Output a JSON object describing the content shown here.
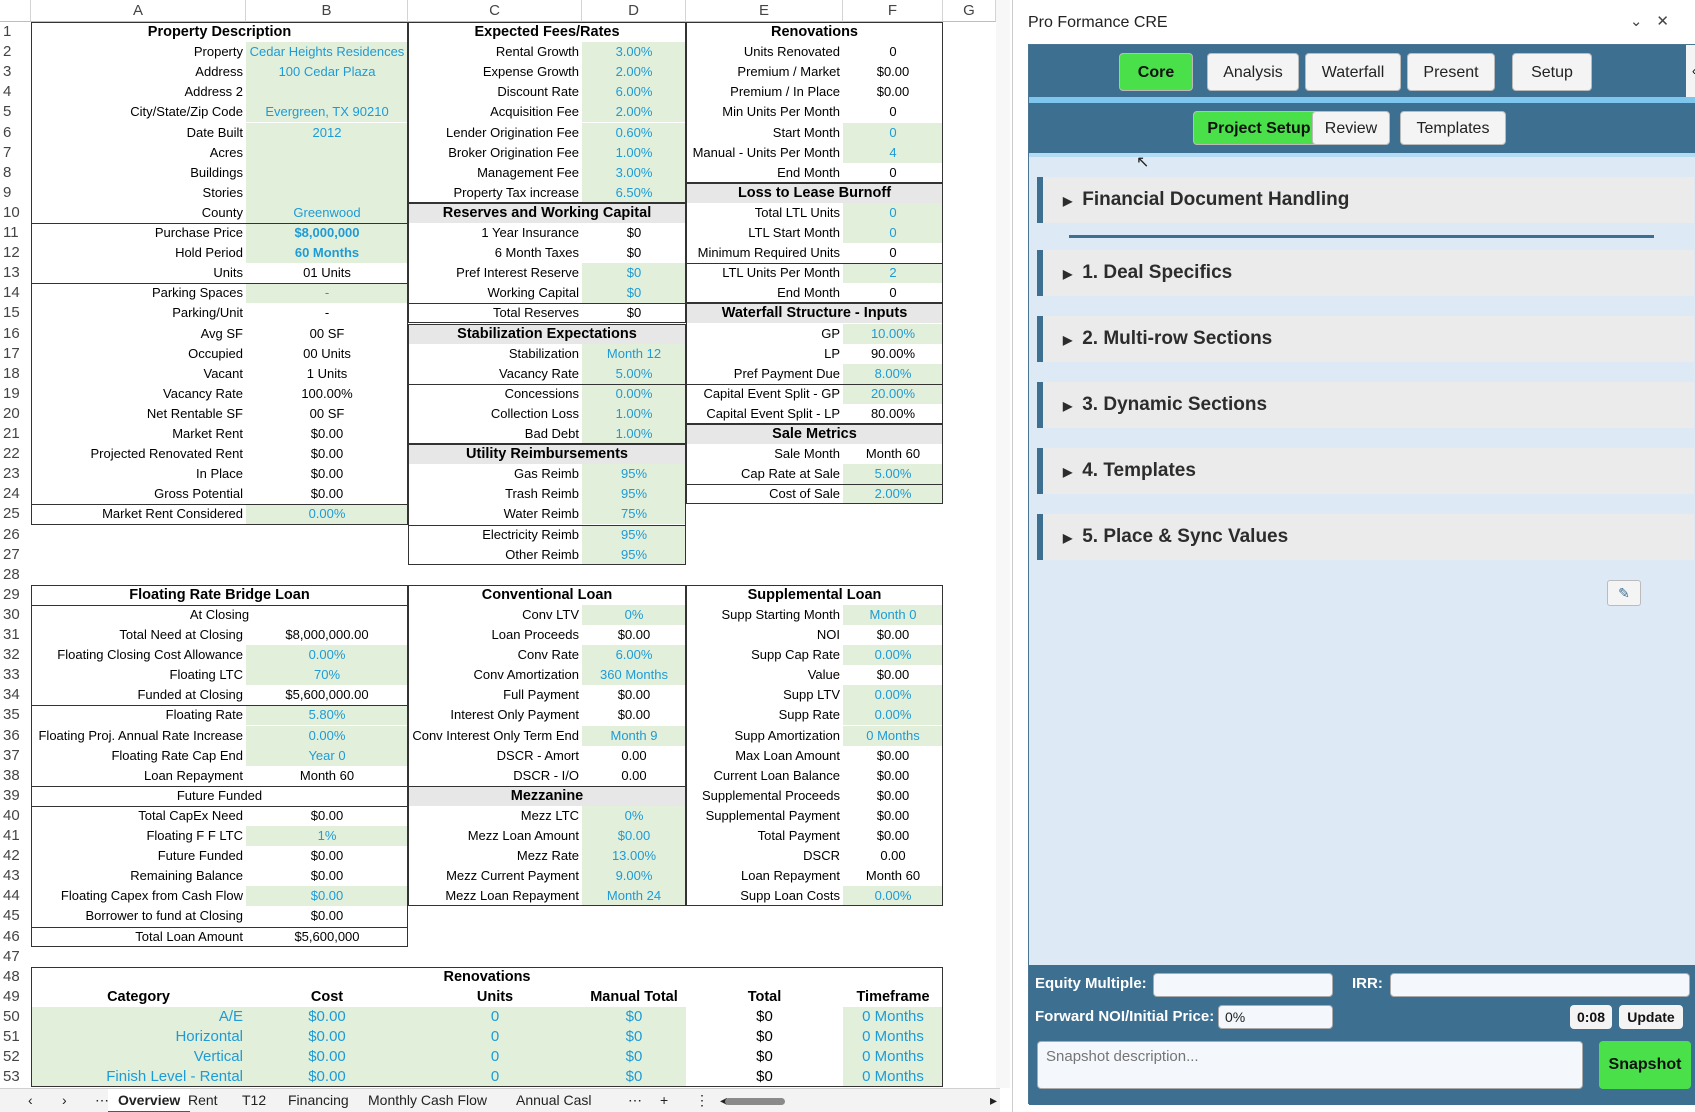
{
  "sheet": {
    "columns": [
      "A",
      "B",
      "C",
      "D",
      "E",
      "F",
      "G"
    ],
    "rows": [
      "1",
      "2",
      "3",
      "4",
      "5",
      "6",
      "7",
      "8",
      "9",
      "10",
      "11",
      "12",
      "13",
      "14",
      "15",
      "16",
      "17",
      "18",
      "19",
      "20",
      "21",
      "22",
      "23",
      "24",
      "25",
      "26",
      "27",
      "28",
      "29",
      "30",
      "31",
      "32",
      "33",
      "34",
      "35",
      "36",
      "37",
      "38",
      "39",
      "40",
      "41",
      "42",
      "43",
      "44",
      "45",
      "46",
      "47",
      "48",
      "49",
      "50",
      "51",
      "52",
      "53"
    ],
    "property": {
      "title": "Property Description",
      "rows": [
        [
          "Property",
          "Cedar Heights Residences",
          "i"
        ],
        [
          "Address",
          "100 Cedar Plaza",
          "i"
        ],
        [
          "Address 2",
          "",
          "i"
        ],
        [
          "City/State/Zip Code",
          "Evergreen, TX 90210",
          "i"
        ],
        [
          "Date Built",
          "2012",
          "i"
        ],
        [
          "Acres",
          "",
          "i"
        ],
        [
          "Buildings",
          "",
          "i"
        ],
        [
          "Stories",
          "",
          "i"
        ],
        [
          "County",
          "Greenwood",
          "i"
        ],
        [
          "Purchase Price",
          "$8,000,000",
          "ib"
        ],
        [
          "Hold Period",
          "60 Months",
          "ib"
        ],
        [
          "Units",
          "01 Units",
          "p"
        ],
        [
          "Parking Spaces",
          "-",
          "i"
        ],
        [
          "Parking/Unit",
          "-",
          "p"
        ],
        [
          "Avg SF",
          "00 SF",
          "p"
        ],
        [
          "Occupied",
          "00 Units",
          "p"
        ],
        [
          "Vacant",
          "1 Units",
          "p"
        ],
        [
          "Vacancy Rate",
          "100.00%",
          "p"
        ],
        [
          "Net Rentable SF",
          "00 SF",
          "p"
        ],
        [
          "Market Rent",
          "$0.00",
          "p"
        ],
        [
          "Projected Renovated Rent",
          "$0.00",
          "p"
        ],
        [
          "In Place",
          "$0.00",
          "p"
        ],
        [
          "Gross Potential",
          "$0.00",
          "p"
        ],
        [
          "Market Rent Considered",
          "0.00%",
          "i"
        ]
      ]
    },
    "fees": {
      "title": "Expected Fees/Rates",
      "rows": [
        [
          "Rental Growth",
          "3.00%",
          "i"
        ],
        [
          "Expense Growth",
          "2.00%",
          "i"
        ],
        [
          "Discount Rate",
          "6.00%",
          "i"
        ],
        [
          "Acquisition Fee",
          "2.00%",
          "i"
        ],
        [
          "Lender Origination Fee",
          "0.60%",
          "i"
        ],
        [
          "Broker Origination Fee",
          "1.00%",
          "i"
        ],
        [
          "Management Fee",
          "3.00%",
          "i"
        ],
        [
          "Property Tax increase",
          "6.50%",
          "i"
        ]
      ]
    },
    "reserves": {
      "title": "Reserves and Working Capital",
      "rows": [
        [
          "1 Year Insurance",
          "$0",
          "p"
        ],
        [
          "6 Month Taxes",
          "$0",
          "p"
        ],
        [
          "Pref Interest Reserve",
          "$0",
          "i"
        ],
        [
          "Working Capital",
          "$0",
          "i"
        ],
        [
          "Total Reserves",
          "$0",
          "p"
        ]
      ]
    },
    "stabilization": {
      "title": "Stabilization Expectations",
      "rows": [
        [
          "Stabilization",
          "Month 12",
          "i"
        ],
        [
          "Vacancy Rate",
          "5.00%",
          "i"
        ],
        [
          "Concessions",
          "0.00%",
          "i"
        ],
        [
          "Collection Loss",
          "1.00%",
          "i"
        ],
        [
          "Bad Debt",
          "1.00%",
          "i"
        ]
      ]
    },
    "utility": {
      "title": "Utility Reimbursements",
      "rows": [
        [
          "Gas Reimb",
          "95%",
          "i"
        ],
        [
          "Trash Reimb",
          "95%",
          "i"
        ],
        [
          "Water Reimb",
          "75%",
          "i"
        ],
        [
          "Electricity Reimb",
          "95%",
          "i"
        ],
        [
          "Other Reimb",
          "95%",
          "i"
        ]
      ]
    },
    "renovations": {
      "title": "Renovations",
      "rows": [
        [
          "Units Renovated",
          "0",
          "p"
        ],
        [
          "Premium / Market",
          "$0.00",
          "p"
        ],
        [
          "Premium / In Place",
          "$0.00",
          "p"
        ],
        [
          "Min Units Per Month",
          "0",
          "p"
        ],
        [
          "Start Month",
          "0",
          "i"
        ],
        [
          "Manual - Units Per Month",
          "4",
          "i"
        ],
        [
          "End Month",
          "0",
          "p"
        ]
      ]
    },
    "ltl": {
      "title": "Loss to Lease Burnoff",
      "rows": [
        [
          "Total LTL Units",
          "0",
          "i"
        ],
        [
          "LTL Start Month",
          "0",
          "i"
        ],
        [
          "Minimum Required Units",
          "0",
          "p"
        ],
        [
          "LTL Units Per Month",
          "2",
          "i"
        ],
        [
          "End Month",
          "0",
          "p"
        ]
      ]
    },
    "waterfall": {
      "title": "Waterfall Structure - Inputs",
      "rows": [
        [
          "GP",
          "10.00%",
          "i"
        ],
        [
          "LP",
          "90.00%",
          "p"
        ],
        [
          "Pref Payment Due",
          "8.00%",
          "i"
        ],
        [
          "Capital Event Split - GP",
          "20.00%",
          "i"
        ],
        [
          "Capital Event Split - LP",
          "80.00%",
          "p"
        ]
      ]
    },
    "sale": {
      "title": "Sale Metrics",
      "rows": [
        [
          "Sale Month",
          "Month 60",
          "p"
        ],
        [
          "Cap Rate at Sale",
          "5.00%",
          "i"
        ],
        [
          "Cost of Sale",
          "2.00%",
          "i"
        ]
      ]
    },
    "bridge": {
      "title": "Floating Rate Bridge Loan",
      "sub1": "At Closing",
      "sub2": "Future Funded",
      "rows1": [
        [
          "Total Need at Closing",
          "$8,000,000.00",
          "p"
        ],
        [
          "Floating Closing Cost Allowance",
          "0.00%",
          "i"
        ],
        [
          "Floating LTC",
          "70%",
          "i"
        ],
        [
          "Funded at Closing",
          "$5,600,000.00",
          "p"
        ],
        [
          "Floating Rate",
          "5.80%",
          "i"
        ],
        [
          "Floating Proj. Annual Rate Increase",
          "0.00%",
          "i"
        ],
        [
          "Floating Rate Cap End",
          "Year 0",
          "i"
        ],
        [
          "Loan Repayment",
          "Month 60",
          "p"
        ]
      ],
      "rows2": [
        [
          "Total CapEx Need",
          "$0.00",
          "p"
        ],
        [
          "Floating F F LTC",
          "1%",
          "i"
        ],
        [
          "Future Funded",
          "$0.00",
          "p"
        ],
        [
          "Remaining Balance",
          "$0.00",
          "p"
        ],
        [
          "Floating Capex from Cash Flow",
          "$0.00",
          "i"
        ],
        [
          "Borrower to fund at Closing",
          "$0.00",
          "p"
        ],
        [
          "Total Loan Amount",
          "$5,600,000",
          "p"
        ]
      ]
    },
    "conventional": {
      "title": "Conventional Loan",
      "rows": [
        [
          "Conv LTV",
          "0%",
          "i"
        ],
        [
          "Loan Proceeds",
          "$0.00",
          "p"
        ],
        [
          "Conv Rate",
          "6.00%",
          "i"
        ],
        [
          "Conv Amortization",
          "360 Months",
          "i"
        ],
        [
          "Full Payment",
          "$0.00",
          "p"
        ],
        [
          "Interest Only Payment",
          "$0.00",
          "p"
        ],
        [
          "Conv Interest Only Term End",
          "Month 9",
          "i"
        ],
        [
          "DSCR - Amort",
          "0.00",
          "p"
        ],
        [
          "DSCR - I/O",
          "0.00",
          "p"
        ],
        [
          "Loan Repayment",
          "Month 60",
          "p"
        ]
      ]
    },
    "mezz": {
      "title": "Mezzanine",
      "rows": [
        [
          "Mezz LTC",
          "0%",
          "i"
        ],
        [
          "Mezz Loan Amount",
          "$0.00",
          "i"
        ],
        [
          "Mezz Rate",
          "13.00%",
          "i"
        ],
        [
          "Mezz Current Payment",
          "9.00%",
          "i"
        ],
        [
          "Mezz Loan Repayment",
          "Month 24",
          "i"
        ]
      ]
    },
    "supplemental": {
      "title": "Supplemental Loan",
      "rows": [
        [
          "Supp Starting Month",
          "Month 0",
          "i"
        ],
        [
          "NOI",
          "$0.00",
          "p"
        ],
        [
          "Supp Cap Rate",
          "0.00%",
          "i"
        ],
        [
          "Value",
          "$0.00",
          "p"
        ],
        [
          "Supp LTV",
          "0.00%",
          "i"
        ],
        [
          "Supp Rate",
          "0.00%",
          "i"
        ],
        [
          "Supp Amortization",
          "0 Months",
          "i"
        ],
        [
          "Max Loan Amount",
          "$0.00",
          "p"
        ],
        [
          "Current Loan Balance",
          "$0.00",
          "p"
        ],
        [
          "Supplemental Proceeds",
          "$0.00",
          "p"
        ],
        [
          "Supplemental Payment",
          "$0.00",
          "p"
        ],
        [
          "Total Payment",
          "$0.00",
          "p"
        ],
        [
          "DSCR",
          "0.00",
          "p"
        ],
        [
          "Loan Repayment",
          "Month 60",
          "p"
        ],
        [
          "Supp Loan Costs",
          "0.00%",
          "i"
        ]
      ]
    },
    "reno_table": {
      "title": "Renovations",
      "headers": [
        "Category",
        "Cost",
        "Units",
        "Manual Total",
        "Total",
        "Timeframe"
      ],
      "rows": [
        [
          "A/E",
          "$0.00",
          "0",
          "$0",
          "$0",
          "0 Months"
        ],
        [
          "Horizontal",
          "$0.00",
          "0",
          "$0",
          "$0",
          "0 Months"
        ],
        [
          "Vertical",
          "$0.00",
          "0",
          "$0",
          "$0",
          "0 Months"
        ],
        [
          "Finish Level - Rental",
          "$0.00",
          "0",
          "$0",
          "$0",
          "0 Months"
        ]
      ]
    },
    "tabs": [
      "Overview",
      "Rent",
      "T12",
      "Financing",
      "Monthly Cash Flow",
      "Annual Casl"
    ]
  },
  "pane": {
    "title": "Pro Formance CRE",
    "topnav": [
      "Core",
      "Analysis",
      "Waterfall",
      "Present",
      "Setup"
    ],
    "subnav": [
      "Project Setup",
      "Review",
      "Templates"
    ],
    "sections": [
      "Financial Document Handling",
      "1. Deal Specifics",
      "2. Multi-row Sections",
      "3. Dynamic Sections",
      "4. Templates",
      "5. Place & Sync Values"
    ],
    "bottom": {
      "equity_label": "Equity Multiple:",
      "irr_label": "IRR:",
      "noi_label": "Forward NOI/Initial Price:",
      "noi_value": "0%",
      "timer": "0:08",
      "update": "Update",
      "snapshot_placeholder": "Snapshot description...",
      "snapshot_button": "Snapshot"
    }
  }
}
